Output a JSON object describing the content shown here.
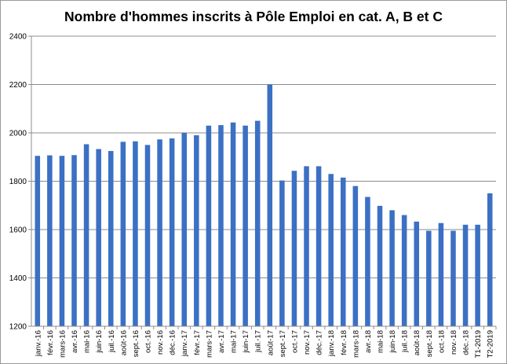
{
  "chart_data": {
    "type": "bar",
    "title": "Nombre d'hommes inscrits à Pôle Emploi en cat. A, B et C",
    "xlabel": "",
    "ylabel": "",
    "ylim": [
      1200,
      2400
    ],
    "yticks": [
      "1200",
      "1400",
      "1600",
      "1800",
      "2000",
      "2200",
      "2400"
    ],
    "grid": "horizontal",
    "legend": "none",
    "bar_color": "#3b70c4",
    "categories": [
      "janv.-16",
      "févr.-16",
      "mars-16",
      "avr.-16",
      "mai-16",
      "juin-16",
      "juil.-16",
      "août-16",
      "sept.-16",
      "oct.-16",
      "nov.-16",
      "déc.-16",
      "janv.-17",
      "févr.-17",
      "mars-17",
      "avr.-17",
      "mai-17",
      "juin-17",
      "juil.-17",
      "août-17",
      "sept.-17",
      "oct.-17",
      "nov.-17",
      "déc.-17",
      "janv.-18",
      "févr.-18",
      "mars-18",
      "avr.-18",
      "mai-18",
      "juin-18",
      "juil.-18",
      "août-18",
      "sept.-18",
      "oct.-18",
      "nov.-18",
      "déc.-18",
      "T1-2019",
      "T2-2019"
    ],
    "values": [
      1905,
      1907,
      1905,
      1908,
      1953,
      1933,
      1925,
      1963,
      1965,
      1950,
      1973,
      1977,
      2000,
      1990,
      2030,
      2032,
      2043,
      2030,
      2050,
      2200,
      1803,
      1843,
      1862,
      1862,
      1830,
      1815,
      1780,
      1735,
      1698,
      1680,
      1660,
      1633,
      1595,
      1627,
      1595,
      1620,
      1620,
      1750
    ]
  }
}
